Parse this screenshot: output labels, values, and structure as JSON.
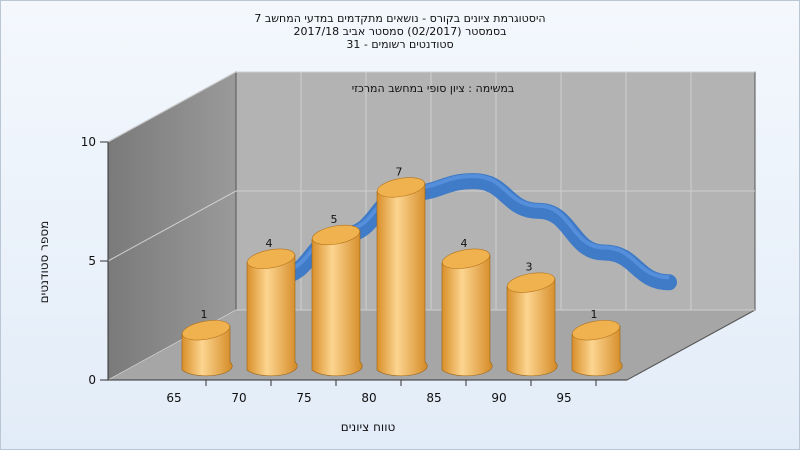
{
  "header": {
    "title_lines": [
      "היסטוגרמת ציונים בקורס - נושאים מתקדמים במדעי המחשב 7",
      "בסמסטר  (02/2017)  סמסטר אביב 2017/18",
      "סטודנטים רשומים - 31"
    ]
  },
  "chart_data": {
    "type": "bar",
    "title": "",
    "subtitle": "במשימה : ציון סופי במחשב המרכזי",
    "xlabel": "טווח ציונים",
    "ylabel": "מספר סטודנטים",
    "categories": [
      "65",
      "70",
      "75",
      "80",
      "85",
      "90",
      "95"
    ],
    "values": [
      1,
      4,
      5,
      7,
      4,
      3,
      1
    ],
    "data_labels": [
      "1",
      "4",
      "5",
      "7",
      "4",
      "3",
      "1"
    ],
    "ylim": [
      0,
      10
    ],
    "yticks": [
      "0",
      "5",
      "10"
    ],
    "overlay_curve": "distribution-curve",
    "grid": true,
    "legend": "none",
    "colors": {
      "bar": "#e8a23c",
      "bar_highlight": "#fcd590",
      "bar_top": "#f0b24e",
      "curve": "#3a78c8",
      "back_wall": "#b2b2b2",
      "side_wall": "#8c8c8c",
      "floor": "#a8a8a8",
      "grid": "#cfcfcf"
    }
  }
}
